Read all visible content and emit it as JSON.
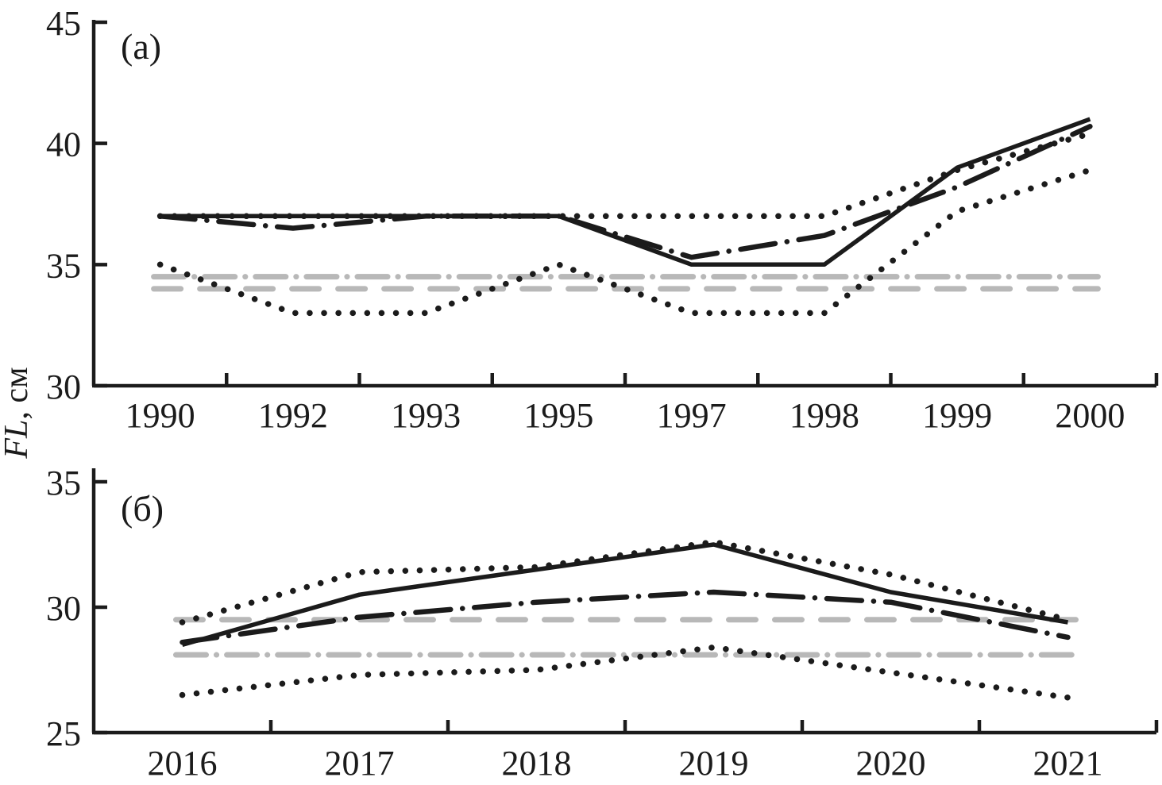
{
  "ylabel": {
    "italic": "FL",
    "rest": ", см"
  },
  "line_color": "#1b1b1b",
  "reference_color": "#b8b8b8",
  "background": "#ffffff",
  "chart_data": [
    {
      "panel_label": "(a)",
      "type": "line",
      "categories": [
        "1990",
        "1992",
        "1993",
        "1995",
        "1997",
        "1998",
        "1999",
        "2000"
      ],
      "ylim": [
        30,
        45
      ],
      "yticks": [
        45,
        40,
        35,
        30
      ],
      "grid": false,
      "legend": false,
      "series": [
        {
          "name": "gray-dash-dot-reference",
          "style": "gray-dashdot",
          "level": 34.5
        },
        {
          "name": "gray-dashed-reference",
          "style": "gray-dashed",
          "level": 34.0
        },
        {
          "name": "lower-dotted",
          "style": "dotted",
          "values": [
            35,
            33,
            33,
            35,
            33,
            33,
            37.2,
            38.9
          ]
        },
        {
          "name": "upper-dotted",
          "style": "dotted",
          "values": [
            37,
            37,
            37,
            37,
            37,
            37,
            38.9,
            40.4
          ]
        },
        {
          "name": "dash-dot",
          "style": "dashdot",
          "values": [
            37,
            36.5,
            37,
            37,
            35.3,
            36.2,
            38.2,
            40.7
          ]
        },
        {
          "name": "solid",
          "style": "solid",
          "values": [
            37,
            37,
            37,
            37,
            35,
            35,
            39,
            41
          ]
        }
      ]
    },
    {
      "panel_label": "(б)",
      "type": "line",
      "categories": [
        "2016",
        "2017",
        "2018",
        "2019",
        "2020",
        "2021"
      ],
      "ylim": [
        25,
        35
      ],
      "yticks": [
        35,
        30,
        25
      ],
      "grid": false,
      "legend": false,
      "series": [
        {
          "name": "gray-dashed-reference",
          "style": "gray-dashed",
          "level": 29.5
        },
        {
          "name": "gray-dash-dot-reference",
          "style": "gray-dashdot",
          "level": 28.1
        },
        {
          "name": "lower-dotted",
          "style": "dotted",
          "values": [
            26.5,
            27.3,
            27.5,
            28.4,
            27.4,
            26.4
          ]
        },
        {
          "name": "upper-dotted",
          "style": "dotted",
          "values": [
            29.4,
            31.4,
            31.6,
            32.6,
            31.3,
            29.5
          ]
        },
        {
          "name": "dash-dot",
          "style": "dashdot",
          "values": [
            28.6,
            29.6,
            30.2,
            30.6,
            30.2,
            28.8
          ]
        },
        {
          "name": "solid",
          "style": "solid",
          "values": [
            28.5,
            30.5,
            31.5,
            32.5,
            30.6,
            29.4
          ]
        }
      ]
    }
  ]
}
